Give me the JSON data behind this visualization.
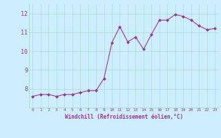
{
  "x": [
    0,
    1,
    2,
    3,
    4,
    5,
    6,
    7,
    8,
    9,
    10,
    11,
    12,
    13,
    14,
    15,
    16,
    17,
    18,
    19,
    20,
    21,
    22,
    23
  ],
  "y": [
    7.6,
    7.7,
    7.7,
    7.6,
    7.7,
    7.7,
    7.8,
    7.9,
    7.9,
    8.55,
    10.45,
    11.3,
    10.5,
    10.75,
    10.1,
    10.9,
    11.65,
    11.65,
    11.95,
    11.85,
    11.65,
    11.35,
    11.15,
    11.2
  ],
  "line_color": "#993399",
  "marker": "D",
  "marker_size": 2,
  "bg_color": "#cceeff",
  "grid_color": "#aaddcc",
  "xlabel": "Windchill (Refroidissement éolien,°C)",
  "xlabel_color": "#993399",
  "tick_color": "#993399",
  "ylim": [
    7.0,
    12.5
  ],
  "xlim": [
    -0.5,
    23.5
  ],
  "yticks": [
    8,
    9,
    10,
    11,
    12
  ],
  "xticks": [
    0,
    1,
    2,
    3,
    4,
    5,
    6,
    7,
    8,
    9,
    10,
    11,
    12,
    13,
    14,
    15,
    16,
    17,
    18,
    19,
    20,
    21,
    22,
    23
  ]
}
